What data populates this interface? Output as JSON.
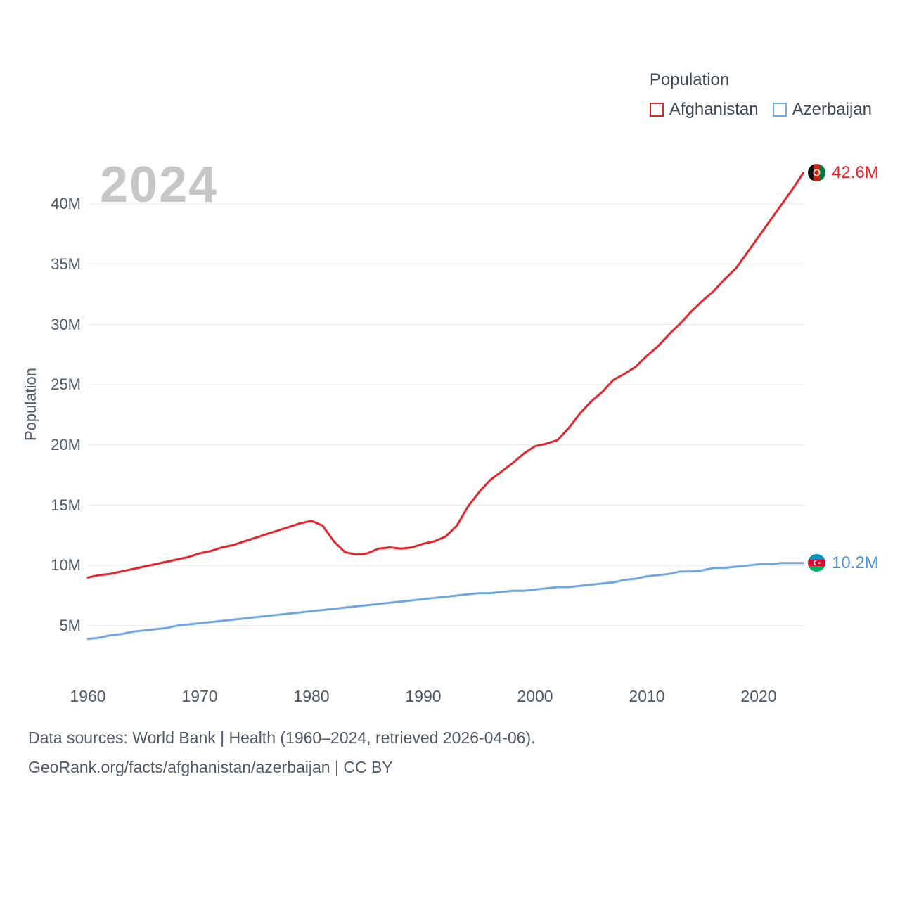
{
  "legend": {
    "title": "Population",
    "items": [
      {
        "label": "Afghanistan",
        "color": "#e8232a"
      },
      {
        "label": "Azerbaijan",
        "color": "#6fa7e3"
      }
    ]
  },
  "watermark": "2024",
  "end_labels": {
    "afghanistan": {
      "value": "42.6M",
      "flag": "afghanistan-flag-icon"
    },
    "azerbaijan": {
      "value": "10.2M",
      "flag": "azerbaijan-flag-icon"
    }
  },
  "footer": {
    "line1": "Data sources: World Bank | Health (1960–2024, retrieved 2026-04-06).",
    "line2": "GeoRank.org/facts/afghanistan/azerbaijan | CC BY"
  },
  "chart_data": {
    "type": "line",
    "title": "Population",
    "xlabel": "",
    "ylabel": "Population",
    "legend_position": "top-right",
    "grid": "horizontal",
    "ylim": [
      0,
      44.7
    ],
    "x_ticks": [
      "1960",
      "1970",
      "1980",
      "1990",
      "2000",
      "2010",
      "2020"
    ],
    "x_tick_years": [
      1960,
      1970,
      1980,
      1990,
      2000,
      2010,
      2020
    ],
    "y_ticks": [
      "5M",
      "10M",
      "15M",
      "20M",
      "25M",
      "30M",
      "35M",
      "40M"
    ],
    "y_grid_values": [
      5,
      10,
      15,
      20,
      25,
      30,
      35,
      40
    ],
    "x": [
      1960,
      1961,
      1962,
      1963,
      1964,
      1965,
      1966,
      1967,
      1968,
      1969,
      1970,
      1971,
      1972,
      1973,
      1974,
      1975,
      1976,
      1977,
      1978,
      1979,
      1980,
      1981,
      1982,
      1983,
      1984,
      1985,
      1986,
      1987,
      1988,
      1989,
      1990,
      1991,
      1992,
      1993,
      1994,
      1995,
      1996,
      1997,
      1998,
      1999,
      2000,
      2001,
      2002,
      2003,
      2004,
      2005,
      2006,
      2007,
      2008,
      2009,
      2010,
      2011,
      2012,
      2013,
      2014,
      2015,
      2016,
      2017,
      2018,
      2019,
      2020,
      2021,
      2022,
      2023,
      2024
    ],
    "series": [
      {
        "name": "Afghanistan",
        "color": "#e8232a",
        "unit": "millions",
        "end_label": "42.6M",
        "values": [
          9.0,
          9.2,
          9.3,
          9.5,
          9.7,
          9.9,
          10.1,
          10.3,
          10.5,
          10.7,
          11.0,
          11.2,
          11.5,
          11.7,
          12.0,
          12.3,
          12.6,
          12.9,
          13.2,
          13.5,
          13.7,
          13.3,
          12.0,
          11.1,
          10.9,
          11.0,
          11.4,
          11.5,
          11.4,
          11.5,
          11.8,
          12.0,
          12.4,
          13.3,
          14.9,
          16.1,
          17.1,
          17.8,
          18.5,
          19.3,
          19.9,
          20.1,
          20.4,
          21.4,
          22.6,
          23.6,
          24.4,
          25.4,
          25.9,
          26.5,
          27.4,
          28.2,
          29.2,
          30.1,
          31.1,
          32.0,
          32.8,
          33.8,
          34.7,
          36.0,
          37.3,
          38.6,
          39.9,
          41.2,
          42.6
        ]
      },
      {
        "name": "Azerbaijan",
        "color": "#6fa7e3",
        "unit": "millions",
        "end_label": "10.2M",
        "values": [
          3.9,
          4.0,
          4.2,
          4.3,
          4.5,
          4.6,
          4.7,
          4.8,
          5.0,
          5.1,
          5.2,
          5.3,
          5.4,
          5.5,
          5.6,
          5.7,
          5.8,
          5.9,
          6.0,
          6.1,
          6.2,
          6.3,
          6.4,
          6.5,
          6.6,
          6.7,
          6.8,
          6.9,
          7.0,
          7.1,
          7.2,
          7.3,
          7.4,
          7.5,
          7.6,
          7.7,
          7.7,
          7.8,
          7.9,
          7.9,
          8.0,
          8.1,
          8.2,
          8.2,
          8.3,
          8.4,
          8.5,
          8.6,
          8.8,
          8.9,
          9.1,
          9.2,
          9.3,
          9.5,
          9.5,
          9.6,
          9.8,
          9.8,
          9.9,
          10.0,
          10.1,
          10.1,
          10.2,
          10.2,
          10.2
        ]
      }
    ]
  }
}
